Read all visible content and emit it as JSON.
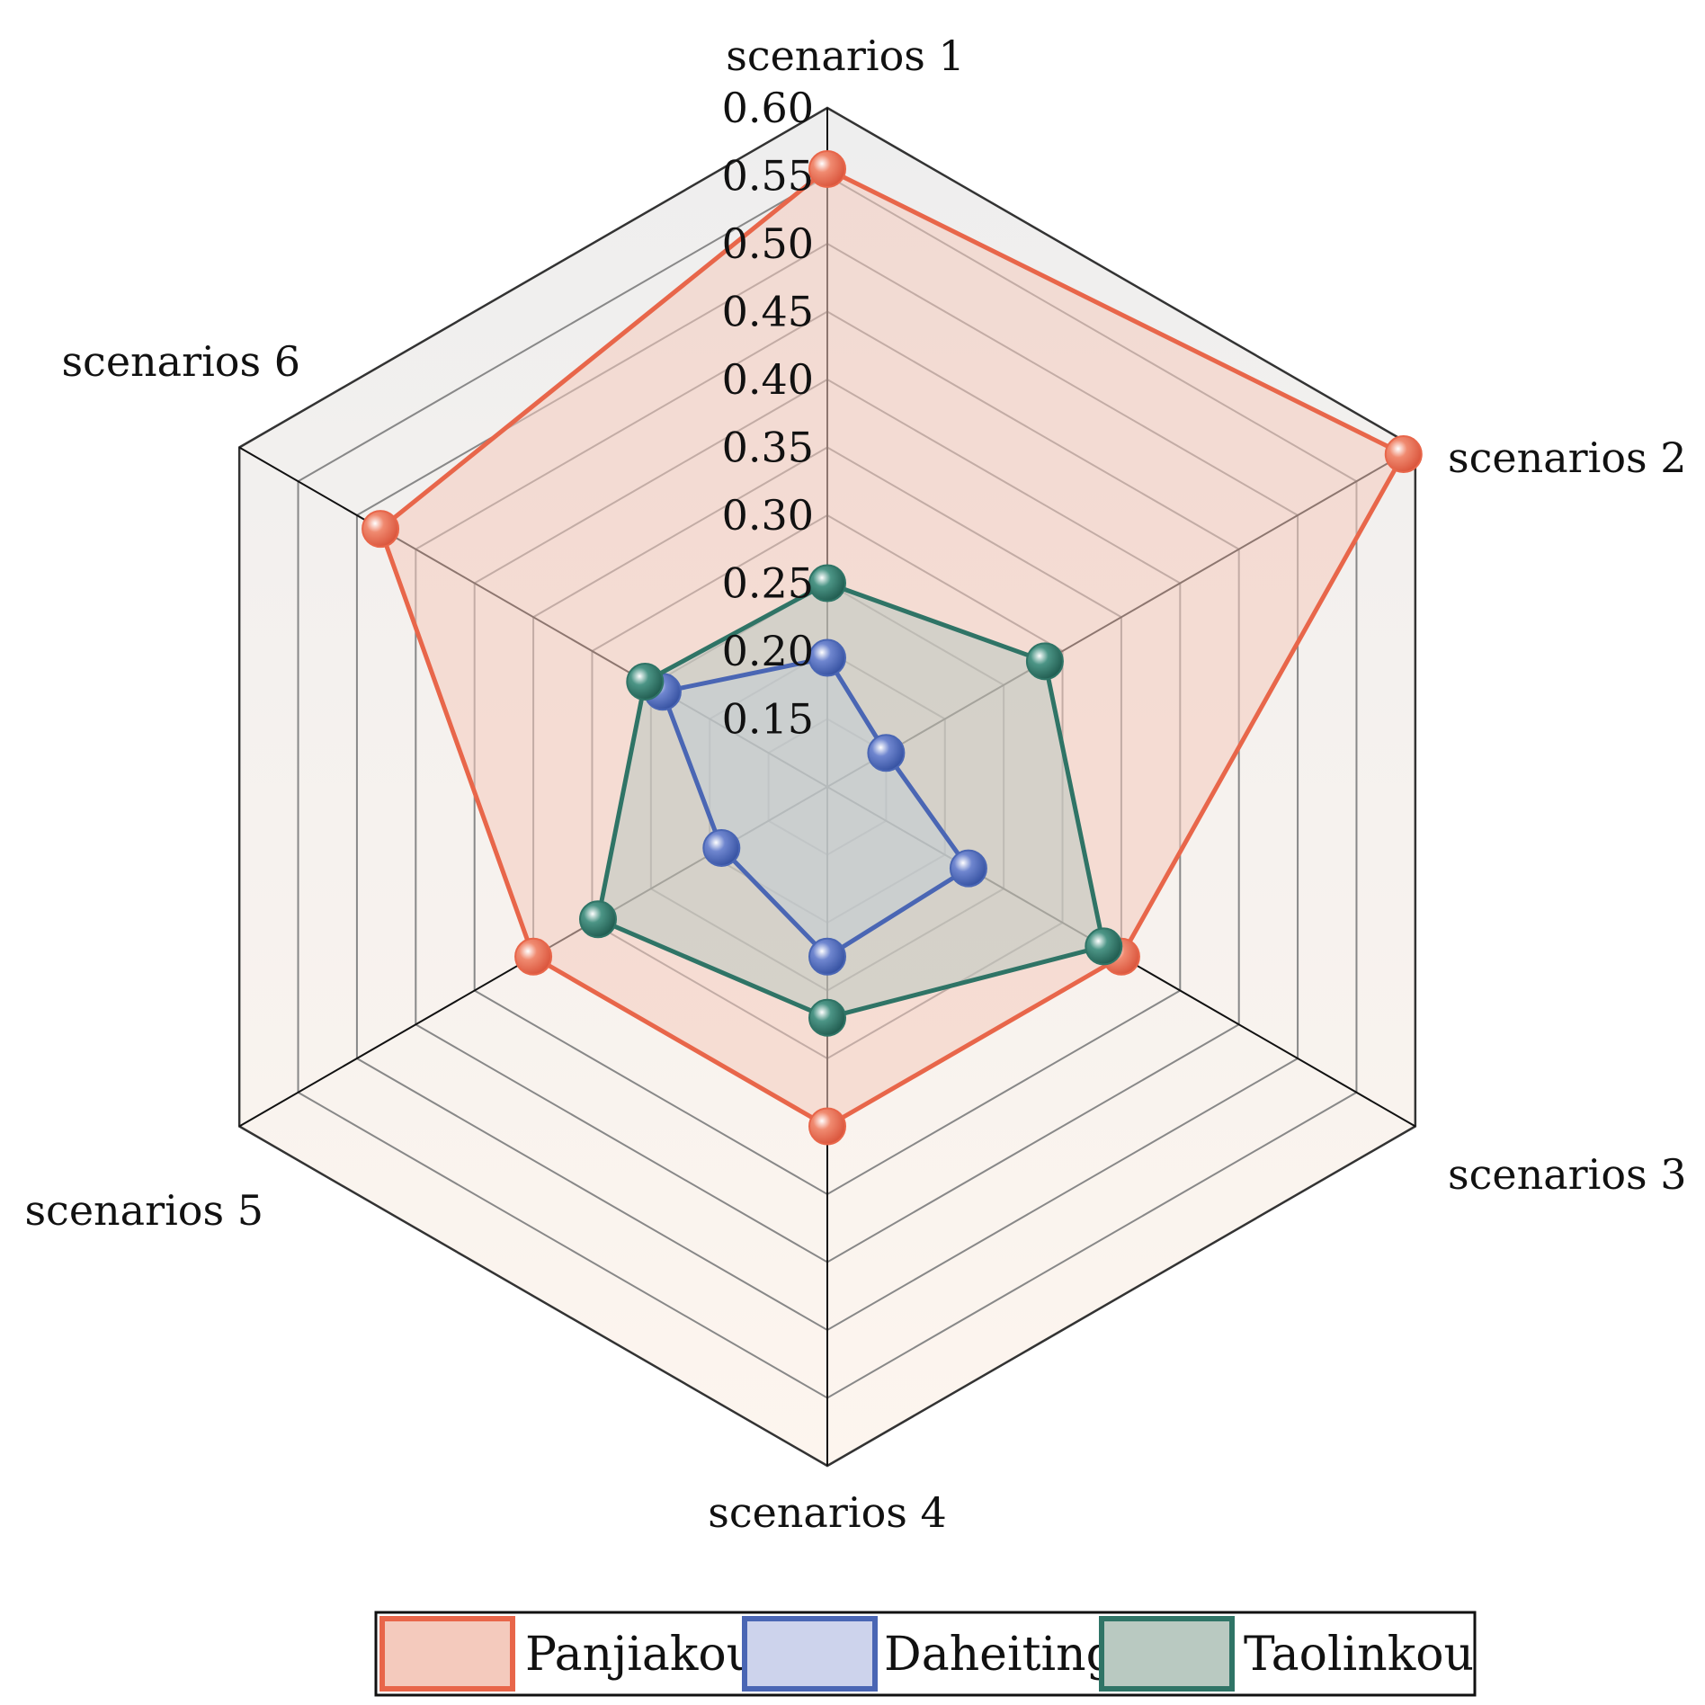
{
  "chart_data": {
    "type": "radar",
    "axes": [
      "scenarios 1",
      "scenarios 2",
      "scenarios 3",
      "scenarios 4",
      "scenarios 5",
      "scenarios 6"
    ],
    "ticks": [
      "0.60",
      "0.55",
      "0.50",
      "0.45",
      "0.40",
      "0.35",
      "0.30",
      "0.25",
      "0.20",
      "0.15"
    ],
    "range": [
      0.1,
      0.6
    ],
    "legend_placement": "bottom",
    "series": [
      {
        "name": "Panjiakou",
        "color": "#e8664a",
        "fill": "#f4cabd",
        "values": [
          0.555,
          0.59,
          0.35,
          0.35,
          0.35,
          0.48
        ]
      },
      {
        "name": "Daheiting",
        "color": "#4a66b4",
        "fill": "#cdd3ec",
        "values": [
          0.195,
          0.15,
          0.22,
          0.225,
          0.19,
          0.24
        ]
      },
      {
        "name": "Taolinkou",
        "color": "#2f7466",
        "fill": "#b9c9c1",
        "values": [
          0.25,
          0.285,
          0.335,
          0.27,
          0.295,
          0.255
        ]
      }
    ]
  }
}
